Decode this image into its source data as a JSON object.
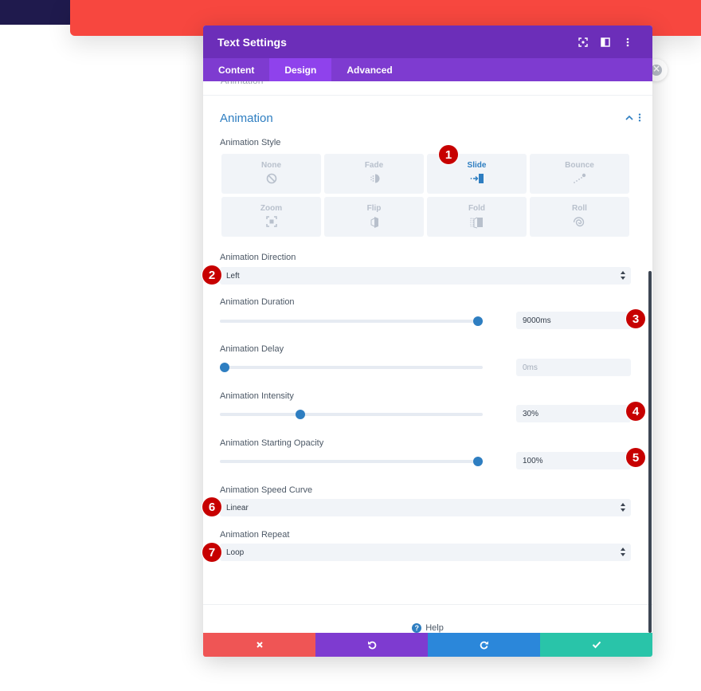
{
  "modal": {
    "title": "Text Settings",
    "header_icons": [
      "focus-icon",
      "split-view-icon",
      "more-options-icon"
    ],
    "tabs": [
      {
        "label": "Content",
        "active": false
      },
      {
        "label": "Design",
        "active": true
      },
      {
        "label": "Advanced",
        "active": false
      }
    ]
  },
  "section": {
    "previous_label": "Animation",
    "title": "Animation"
  },
  "animation_style": {
    "label": "Animation Style",
    "options": [
      {
        "label": "None",
        "icon": "none-icon",
        "active": false
      },
      {
        "label": "Fade",
        "icon": "fade-icon",
        "active": false
      },
      {
        "label": "Slide",
        "icon": "slide-icon",
        "active": true
      },
      {
        "label": "Bounce",
        "icon": "bounce-icon",
        "active": false
      },
      {
        "label": "Zoom",
        "icon": "zoom-icon",
        "active": false
      },
      {
        "label": "Flip",
        "icon": "flip-icon",
        "active": false
      },
      {
        "label": "Fold",
        "icon": "fold-icon",
        "active": false
      },
      {
        "label": "Roll",
        "icon": "roll-icon",
        "active": false
      }
    ]
  },
  "direction": {
    "label": "Animation Direction",
    "value": "Left"
  },
  "duration": {
    "label": "Animation Duration",
    "value": "9000ms",
    "slider_fraction": 1.0
  },
  "delay": {
    "label": "Animation Delay",
    "value": "0ms",
    "slider_fraction": 0.0
  },
  "intensity": {
    "label": "Animation Intensity",
    "value": "30%",
    "slider_fraction": 0.3
  },
  "opacity": {
    "label": "Animation Starting Opacity",
    "value": "100%",
    "slider_fraction": 1.0
  },
  "speed_curve": {
    "label": "Animation Speed Curve",
    "value": "Linear"
  },
  "repeat": {
    "label": "Animation Repeat",
    "value": "Loop"
  },
  "help": {
    "label": "Help"
  },
  "footer": {
    "icons": [
      "close-icon",
      "undo-icon",
      "redo-icon",
      "check-icon"
    ]
  },
  "callouts": [
    "1",
    "2",
    "3",
    "4",
    "5",
    "6",
    "7"
  ],
  "colors": {
    "header": "#6c2eb9",
    "tabs": "#7e3bd0",
    "accent_blue": "#2e7ec1",
    "cancel": "#ef5555",
    "undo": "#7e3bd0",
    "redo": "#2b87da",
    "save": "#29c4a9",
    "callout": "#c70000"
  }
}
